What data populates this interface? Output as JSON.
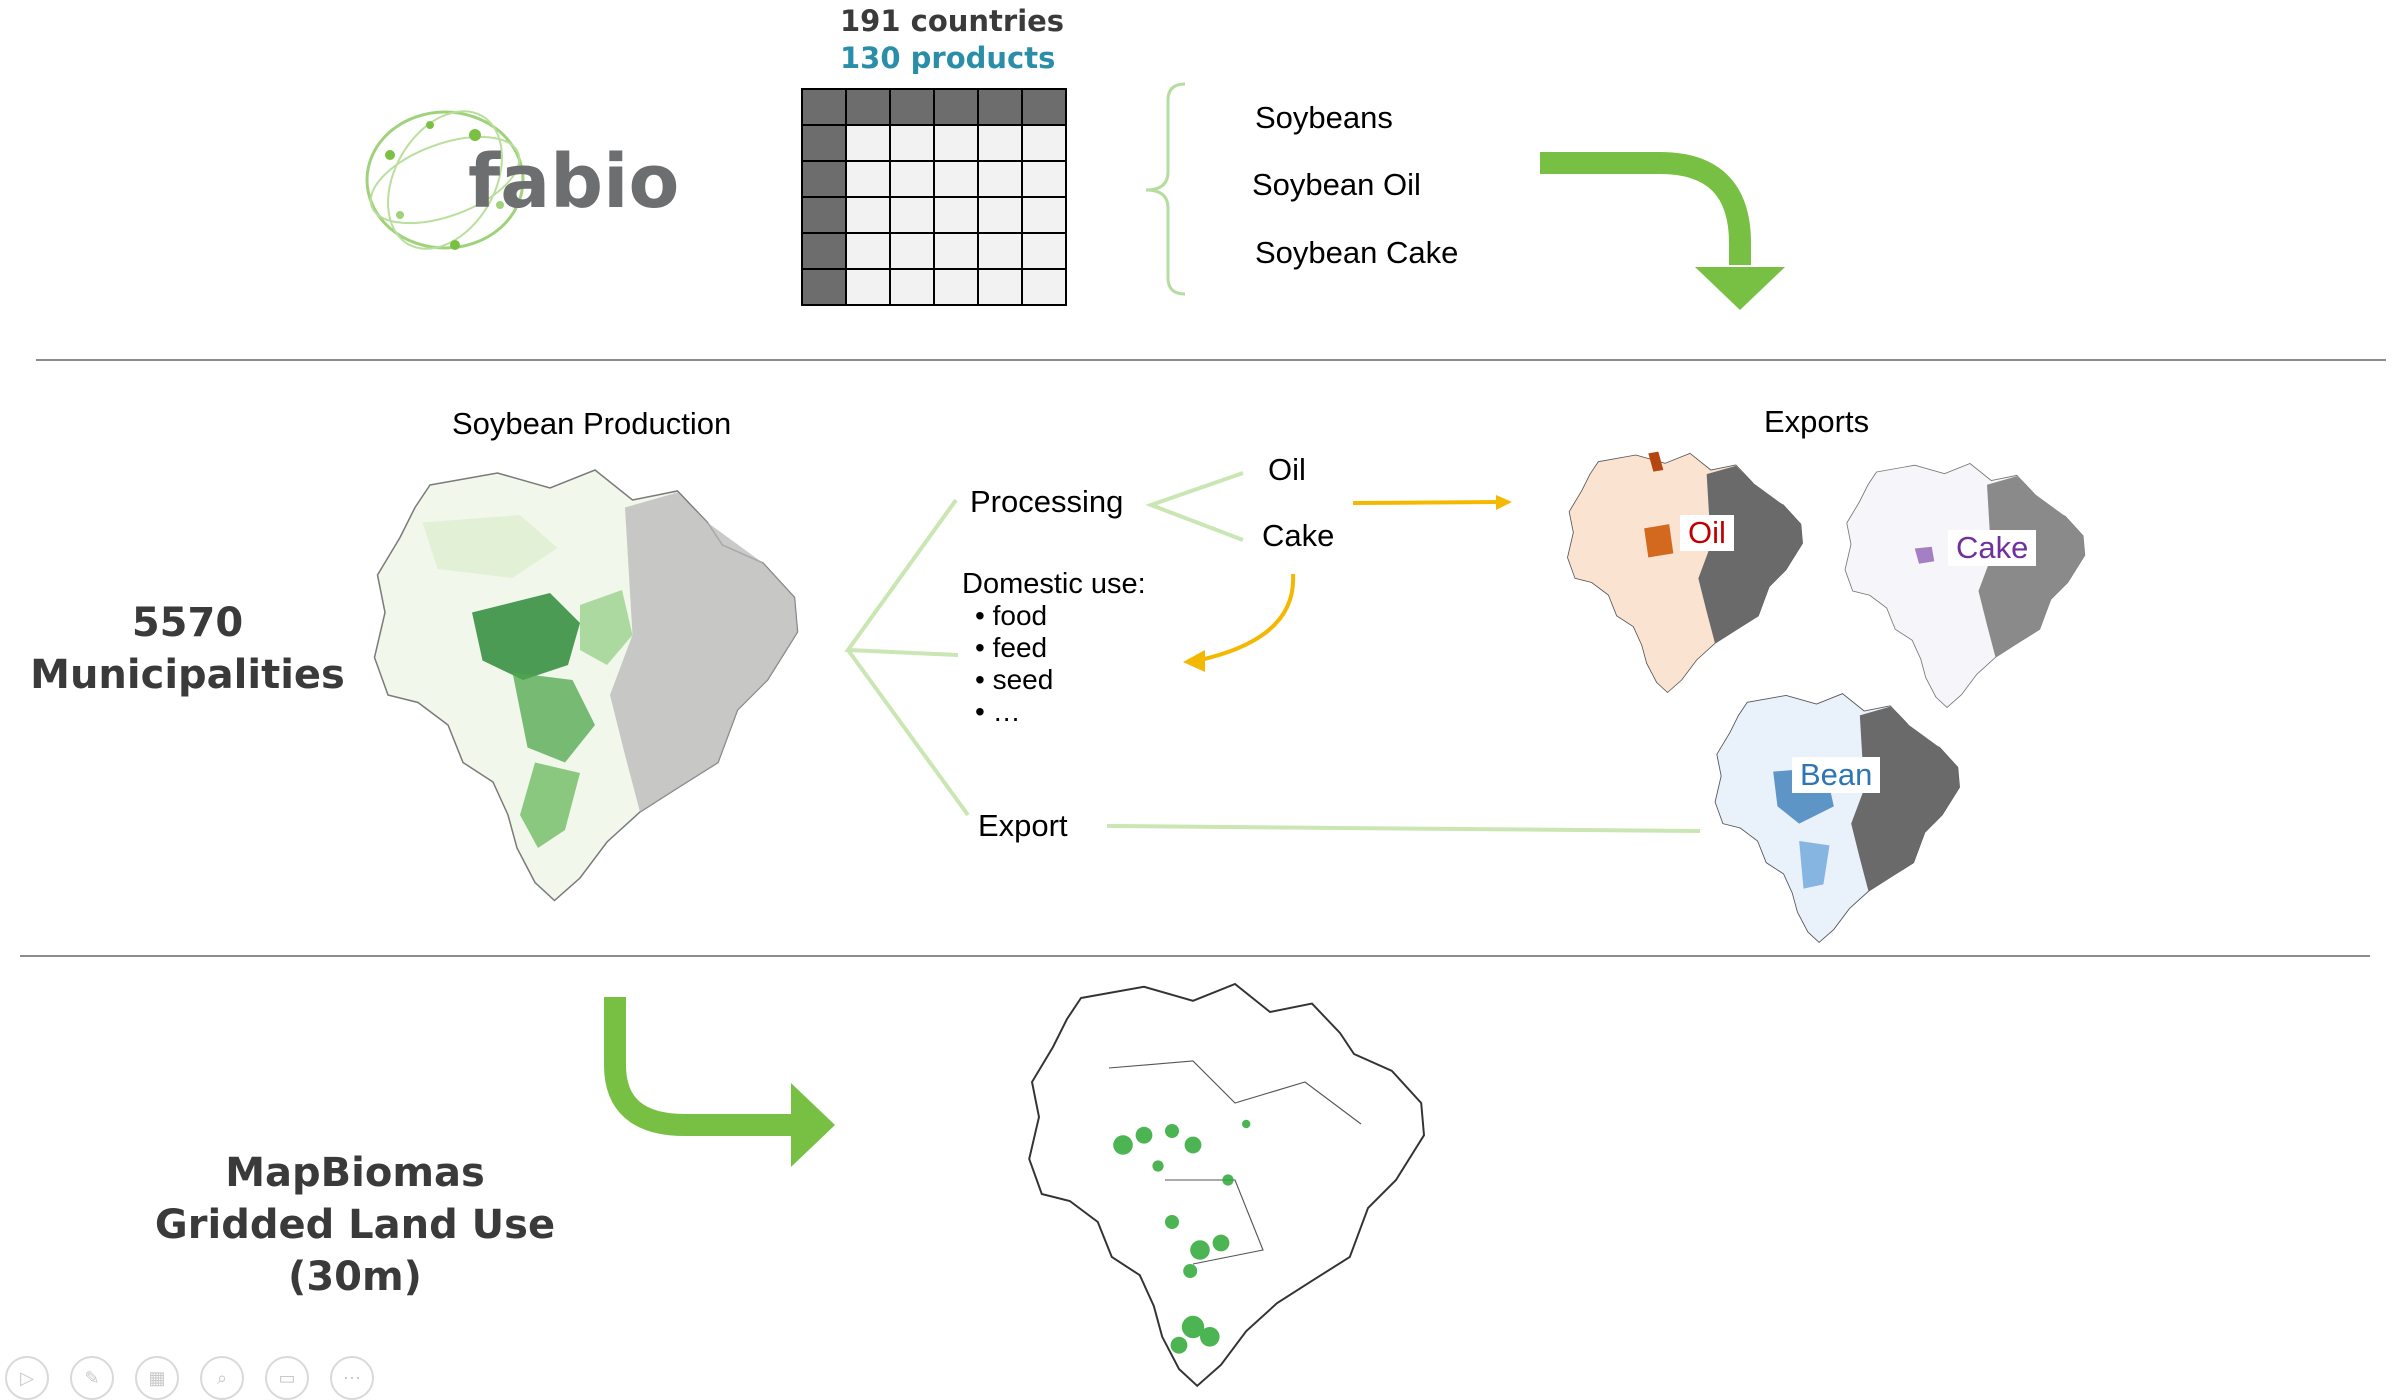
{
  "logo": {
    "text": "fabio",
    "brand_color": "#7ac143"
  },
  "matrix": {
    "countries": "191 countries",
    "products": "130 products",
    "products_color": "#2a8ea8"
  },
  "products_list": [
    "Soybeans",
    "Soybean Oil",
    "Soybean Cake"
  ],
  "left_labels": {
    "municipalities_count": "5570",
    "municipalities_label": "Municipalities",
    "landuse_line1": "MapBiomas",
    "landuse_line2": "Gridded Land Use",
    "landuse_line3": "(30m)"
  },
  "flow": {
    "production_title": "Soybean Production",
    "processing": "Processing",
    "oil": "Oil",
    "cake": "Cake",
    "domestic_title": "Domestic use:",
    "domestic_items": [
      "food",
      "feed",
      "seed",
      "…"
    ],
    "export": "Export",
    "exports_title": "Exports"
  },
  "export_maps": {
    "oil": {
      "label": "Oil",
      "color": "#c00000"
    },
    "cake": {
      "label": "Cake",
      "color": "#7030a0"
    },
    "bean": {
      "label": "Bean",
      "color": "#2e75b6"
    }
  },
  "colors": {
    "arrow_green": "#78c043",
    "arrow_orange": "#f5b800",
    "connector_green": "#c9e6b3",
    "divider": "#8c8c8c"
  },
  "controls": [
    "play-icon",
    "pen-icon",
    "slides-icon",
    "zoom-icon",
    "subtitles-icon",
    "more-icon"
  ]
}
